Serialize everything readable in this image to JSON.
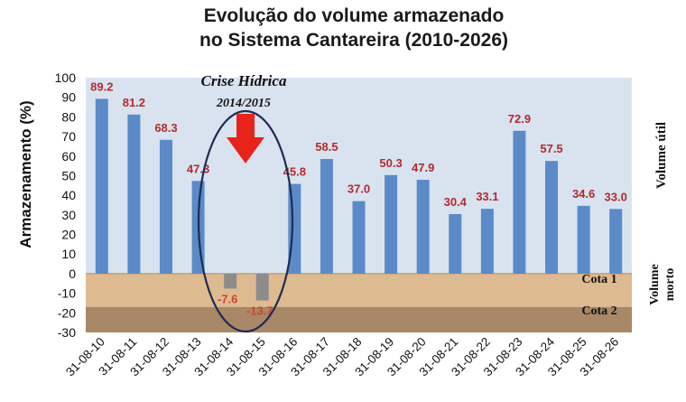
{
  "chart_data": {
    "type": "bar",
    "title_line1": "Evolução do volume armazenado",
    "title_line2": "no Sistema Cantareira (2010-2026)",
    "ylabel": "Armazenamento (%)",
    "ylim": [
      -30,
      100
    ],
    "yticks": [
      -30,
      -20,
      -10,
      0,
      10,
      20,
      30,
      40,
      50,
      60,
      70,
      80,
      90,
      100
    ],
    "categories": [
      "31-08-10",
      "31-08-11",
      "31-08-12",
      "31-08-13",
      "31-08-14",
      "31-08-15",
      "31-08-16",
      "31-08-17",
      "31-08-18",
      "31-08-19",
      "31-08-20",
      "31-08-21",
      "31-08-22",
      "31-08-23",
      "31-08-24",
      "31-08-25",
      "31-08-26"
    ],
    "values": [
      89.2,
      81.2,
      68.3,
      47.3,
      -7.6,
      -13.7,
      45.8,
      58.5,
      37.0,
      50.3,
      47.9,
      30.4,
      33.1,
      72.9,
      57.5,
      34.6,
      33.0
    ],
    "value_labels": [
      "89.2",
      "81.2",
      "68.3",
      "47.3",
      "-7.6",
      "-13.7",
      "45.8",
      "58.5",
      "37.0",
      "50.3",
      "47.9",
      "30.4",
      "33.1",
      "72.9",
      "57.5",
      "34.6",
      "33.0"
    ],
    "grid": false,
    "zones": {
      "useful": {
        "label": "Volume útil",
        "from": 0,
        "to": 100,
        "color": "#d9e3f0"
      },
      "cota1": {
        "label": "Cota 1",
        "from": -17,
        "to": 0,
        "color": "#deba90"
      },
      "cota2": {
        "label": "Cota 2",
        "from": -30,
        "to": -17,
        "color": "#a88866"
      },
      "dead_label_line1": "Volume",
      "dead_label_line2": "morto"
    },
    "annotation": {
      "line1": "Crise Hídrica",
      "line2": "2014/2015",
      "categories": [
        "31-08-14",
        "31-08-15"
      ]
    },
    "colors": {
      "positive_bar": "#5b8ac8",
      "negative_bar": "#8c8c8c",
      "value_label": "#b22a2a",
      "negative_label": "#d0452a",
      "arrow": "#e8231b",
      "ellipse": "#1f2b52"
    }
  }
}
